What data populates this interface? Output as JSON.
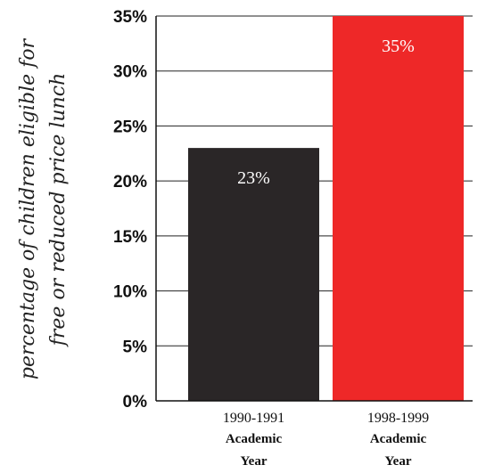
{
  "chart_data": {
    "type": "bar",
    "ylabel": "percentage of children eligible for free or reduced price lunch",
    "ylabel_lines": [
      "percentage of children eligible for",
      "free or reduced price lunch"
    ],
    "ylim": [
      0,
      35
    ],
    "yticks": [
      0,
      5,
      10,
      15,
      20,
      25,
      30,
      35
    ],
    "ytick_labels": [
      "0%",
      "5%",
      "10%",
      "15%",
      "20%",
      "25%",
      "30%",
      "35%"
    ],
    "grid": true,
    "categories": [
      "1990-1991 Academic Year",
      "1998-1999 Academic Year"
    ],
    "category_lines": [
      [
        "1990-1991",
        "Academic",
        "Year"
      ],
      [
        "1998-1999",
        "Academic",
        "Year"
      ]
    ],
    "values": [
      23,
      35
    ],
    "data_labels": [
      "23%",
      "35%"
    ],
    "colors": [
      "#2a2627",
      "#ee2828"
    ]
  }
}
